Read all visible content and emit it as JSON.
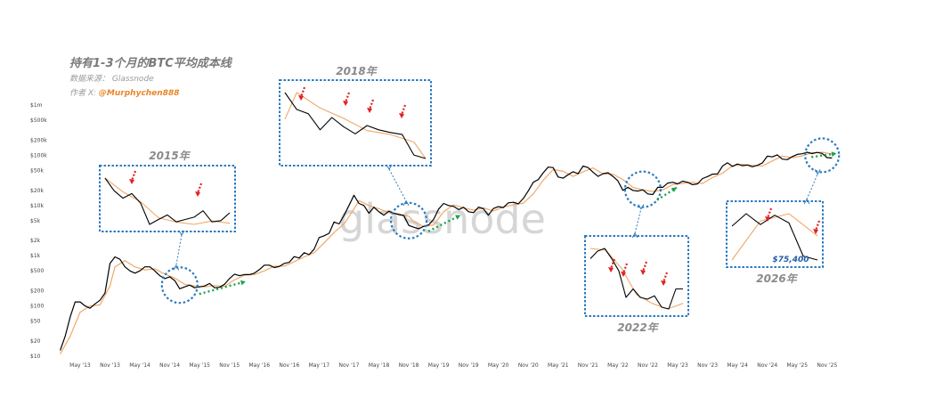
{
  "header": {
    "title": "持有1-3个月的BTC平均成本线",
    "source": "数据来源： Glassnode",
    "author_prefix": "作者 X: ",
    "author_handle": "@Murphychen888"
  },
  "watermark": "glassnode",
  "colors": {
    "price": "#000000",
    "cost_line": "#f0a868",
    "box_border": "#2a7abf",
    "down_arrow": "#e02020",
    "up_arrow": "#1aa34a"
  },
  "chart_data": {
    "type": "line",
    "y_scale": "log",
    "ylim": [
      10,
      1000000
    ],
    "y_ticks": [
      {
        "value": 1000000,
        "label": "$1m"
      },
      {
        "value": 500000,
        "label": "$500k"
      },
      {
        "value": 200000,
        "label": "$200k"
      },
      {
        "value": 100000,
        "label": "$100k"
      },
      {
        "value": 50000,
        "label": "$50k"
      },
      {
        "value": 20000,
        "label": "$20k"
      },
      {
        "value": 10000,
        "label": "$10k"
      },
      {
        "value": 5000,
        "label": "$5k"
      },
      {
        "value": 2000,
        "label": "$2k"
      },
      {
        "value": 1000,
        "label": "$1k"
      },
      {
        "value": 500,
        "label": "$500"
      },
      {
        "value": 200,
        "label": "$200"
      },
      {
        "value": 100,
        "label": "$100"
      },
      {
        "value": 50,
        "label": "$50"
      },
      {
        "value": 20,
        "label": "$20"
      },
      {
        "value": 10,
        "label": "$10"
      }
    ],
    "x_ticks": [
      "May '13",
      "Nov '13",
      "May '14",
      "Nov '14",
      "May '15",
      "Nov '15",
      "May '16",
      "Nov '16",
      "May '17",
      "Nov '17",
      "May '18",
      "Nov '18",
      "May '19",
      "Nov '19",
      "May '20",
      "Nov '20",
      "May '21",
      "Nov '21",
      "May '22",
      "Nov '22",
      "May '23",
      "Nov '23",
      "May '24",
      "Nov '24",
      "May '25",
      "Nov '25"
    ],
    "x_range": [
      "2012-12",
      "2026-01"
    ],
    "series": [
      {
        "key": "price",
        "points": [
          [
            "2013-01",
            13
          ],
          [
            "2013-02",
            25
          ],
          [
            "2013-03",
            60
          ],
          [
            "2013-04",
            120
          ],
          [
            "2013-05",
            120
          ],
          [
            "2013-06",
            100
          ],
          [
            "2013-07",
            90
          ],
          [
            "2013-08",
            110
          ],
          [
            "2013-09",
            130
          ],
          [
            "2013-10",
            180
          ],
          [
            "2013-11",
            700
          ],
          [
            "2013-12",
            950
          ],
          [
            "2014-01",
            850
          ],
          [
            "2014-02",
            600
          ],
          [
            "2014-03",
            500
          ],
          [
            "2014-04",
            450
          ],
          [
            "2014-05",
            500
          ],
          [
            "2014-06",
            600
          ],
          [
            "2014-07",
            600
          ],
          [
            "2014-08",
            500
          ],
          [
            "2014-09",
            400
          ],
          [
            "2014-10",
            350
          ],
          [
            "2014-11",
            380
          ],
          [
            "2014-12",
            320
          ],
          [
            "2015-01",
            220
          ],
          [
            "2015-02",
            240
          ],
          [
            "2015-03",
            260
          ],
          [
            "2015-04",
            230
          ],
          [
            "2015-05",
            240
          ],
          [
            "2015-06",
            250
          ],
          [
            "2015-07",
            280
          ],
          [
            "2015-08",
            230
          ],
          [
            "2015-09",
            235
          ],
          [
            "2015-10",
            270
          ],
          [
            "2015-11",
            350
          ],
          [
            "2015-12",
            430
          ],
          [
            "2016-01",
            400
          ],
          [
            "2016-02",
            420
          ],
          [
            "2016-03",
            420
          ],
          [
            "2016-04",
            450
          ],
          [
            "2016-05",
            530
          ],
          [
            "2016-06",
            650
          ],
          [
            "2016-07",
            650
          ],
          [
            "2016-08",
            580
          ],
          [
            "2016-09",
            610
          ],
          [
            "2016-10",
            700
          ],
          [
            "2016-11",
            740
          ],
          [
            "2016-12",
            960
          ],
          [
            "2017-01",
            900
          ],
          [
            "2017-02",
            1150
          ],
          [
            "2017-03",
            1050
          ],
          [
            "2017-04",
            1350
          ],
          [
            "2017-05",
            2300
          ],
          [
            "2017-06",
            2500
          ],
          [
            "2017-07",
            2800
          ],
          [
            "2017-08",
            4700
          ],
          [
            "2017-09",
            4300
          ],
          [
            "2017-10",
            6400
          ],
          [
            "2017-11",
            10000
          ],
          [
            "2017-12",
            16000
          ],
          [
            "2018-01",
            11000
          ],
          [
            "2018-02",
            10000
          ],
          [
            "2018-03",
            7000
          ],
          [
            "2018-04",
            9200
          ],
          [
            "2018-05",
            7500
          ],
          [
            "2018-06",
            6400
          ],
          [
            "2018-07",
            7700
          ],
          [
            "2018-08",
            7000
          ],
          [
            "2018-09",
            6600
          ],
          [
            "2018-10",
            6300
          ],
          [
            "2018-11",
            4000
          ],
          [
            "2018-12",
            3700
          ],
          [
            "2019-01",
            3450
          ],
          [
            "2019-02",
            3850
          ],
          [
            "2019-03",
            4100
          ],
          [
            "2019-04",
            5300
          ],
          [
            "2019-05",
            8500
          ],
          [
            "2019-06",
            11000
          ],
          [
            "2019-07",
            10000
          ],
          [
            "2019-08",
            9600
          ],
          [
            "2019-09",
            8300
          ],
          [
            "2019-10",
            9200
          ],
          [
            "2019-11",
            7500
          ],
          [
            "2019-12",
            7200
          ],
          [
            "2020-01",
            9300
          ],
          [
            "2020-02",
            8600
          ],
          [
            "2020-03",
            6400
          ],
          [
            "2020-04",
            8700
          ],
          [
            "2020-05",
            9500
          ],
          [
            "2020-06",
            9100
          ],
          [
            "2020-07",
            11300
          ],
          [
            "2020-08",
            11600
          ],
          [
            "2020-09",
            10800
          ],
          [
            "2020-10",
            13800
          ],
          [
            "2020-11",
            19600
          ],
          [
            "2020-12",
            29000
          ],
          [
            "2021-01",
            33000
          ],
          [
            "2021-02",
            45000
          ],
          [
            "2021-03",
            58000
          ],
          [
            "2021-04",
            57000
          ],
          [
            "2021-05",
            37000
          ],
          [
            "2021-06",
            35000
          ],
          [
            "2021-07",
            41000
          ],
          [
            "2021-08",
            47000
          ],
          [
            "2021-09",
            43000
          ],
          [
            "2021-10",
            61000
          ],
          [
            "2021-11",
            57000
          ],
          [
            "2021-12",
            46000
          ],
          [
            "2022-01",
            38000
          ],
          [
            "2022-02",
            43000
          ],
          [
            "2022-03",
            45000
          ],
          [
            "2022-04",
            38000
          ],
          [
            "2022-05",
            31000
          ],
          [
            "2022-06",
            20000
          ],
          [
            "2022-07",
            23000
          ],
          [
            "2022-08",
            20000
          ],
          [
            "2022-09",
            19400
          ],
          [
            "2022-10",
            20500
          ],
          [
            "2022-11",
            17000
          ],
          [
            "2022-12",
            16500
          ],
          [
            "2023-01",
            23000
          ],
          [
            "2023-02",
            23000
          ],
          [
            "2023-03",
            28000
          ],
          [
            "2023-04",
            29000
          ],
          [
            "2023-05",
            27000
          ],
          [
            "2023-06",
            30500
          ],
          [
            "2023-07",
            29000
          ],
          [
            "2023-08",
            26000
          ],
          [
            "2023-09",
            27000
          ],
          [
            "2023-10",
            34500
          ],
          [
            "2023-11",
            37700
          ],
          [
            "2023-12",
            42000
          ],
          [
            "2024-01",
            42500
          ],
          [
            "2024-02",
            61000
          ],
          [
            "2024-03",
            71000
          ],
          [
            "2024-04",
            60000
          ],
          [
            "2024-05",
            67000
          ],
          [
            "2024-06",
            62000
          ],
          [
            "2024-07",
            64000
          ],
          [
            "2024-08",
            59000
          ],
          [
            "2024-09",
            63000
          ],
          [
            "2024-10",
            70000
          ],
          [
            "2024-11",
            96000
          ],
          [
            "2024-12",
            93000
          ],
          [
            "2025-01",
            102000
          ],
          [
            "2025-02",
            84000
          ],
          [
            "2025-03",
            82000
          ],
          [
            "2025-04",
            94000
          ],
          [
            "2025-05",
            104000
          ],
          [
            "2025-06",
            107000
          ],
          [
            "2025-07",
            115000
          ],
          [
            "2025-08",
            108000
          ],
          [
            "2025-09",
            114000
          ],
          [
            "2025-10",
            109000
          ],
          [
            "2025-11",
            90000
          ],
          [
            "2025-12",
            88000
          ]
        ]
      },
      {
        "key": "cost_line",
        "points": [
          [
            "2013-01",
            11
          ],
          [
            "2013-03",
            25
          ],
          [
            "2013-05",
            75
          ],
          [
            "2013-07",
            100
          ],
          [
            "2013-09",
            105
          ],
          [
            "2013-11",
            250
          ],
          [
            "2013-12",
            600
          ],
          [
            "2014-02",
            800
          ],
          [
            "2014-04",
            600
          ],
          [
            "2014-06",
            520
          ],
          [
            "2014-08",
            550
          ],
          [
            "2014-10",
            430
          ],
          [
            "2014-12",
            360
          ],
          [
            "2015-02",
            270
          ],
          [
            "2015-04",
            250
          ],
          [
            "2015-06",
            240
          ],
          [
            "2015-08",
            255
          ],
          [
            "2015-10",
            245
          ],
          [
            "2015-12",
            330
          ],
          [
            "2016-02",
            410
          ],
          [
            "2016-04",
            420
          ],
          [
            "2016-06",
            500
          ],
          [
            "2016-08",
            620
          ],
          [
            "2016-10",
            620
          ],
          [
            "2016-12",
            760
          ],
          [
            "2017-02",
            950
          ],
          [
            "2017-04",
            1150
          ],
          [
            "2017-06",
            1800
          ],
          [
            "2017-08",
            2900
          ],
          [
            "2017-10",
            4300
          ],
          [
            "2017-12",
            8500
          ],
          [
            "2018-01",
            12500
          ],
          [
            "2018-03",
            10000
          ],
          [
            "2018-05",
            8600
          ],
          [
            "2018-07",
            7200
          ],
          [
            "2018-09",
            6800
          ],
          [
            "2018-11",
            6100
          ],
          [
            "2018-12",
            4800
          ],
          [
            "2019-02",
            3800
          ],
          [
            "2019-04",
            4100
          ],
          [
            "2019-06",
            7500
          ],
          [
            "2019-08",
            10300
          ],
          [
            "2019-10",
            9000
          ],
          [
            "2019-12",
            8100
          ],
          [
            "2020-02",
            9000
          ],
          [
            "2020-04",
            7800
          ],
          [
            "2020-06",
            9300
          ],
          [
            "2020-08",
            10300
          ],
          [
            "2020-10",
            11100
          ],
          [
            "2020-12",
            17000
          ],
          [
            "2021-02",
            32000
          ],
          [
            "2021-04",
            52000
          ],
          [
            "2021-06",
            48000
          ],
          [
            "2021-08",
            38000
          ],
          [
            "2021-10",
            47000
          ],
          [
            "2021-12",
            56000
          ],
          [
            "2022-02",
            43000
          ],
          [
            "2022-04",
            42000
          ],
          [
            "2022-06",
            33000
          ],
          [
            "2022-08",
            23000
          ],
          [
            "2022-10",
            20500
          ],
          [
            "2022-12",
            19000
          ],
          [
            "2023-02",
            20500
          ],
          [
            "2023-04",
            26000
          ],
          [
            "2023-06",
            27500
          ],
          [
            "2023-08",
            29000
          ],
          [
            "2023-10",
            27500
          ],
          [
            "2023-12",
            36000
          ],
          [
            "2024-02",
            44000
          ],
          [
            "2024-04",
            62000
          ],
          [
            "2024-06",
            66000
          ],
          [
            "2024-08",
            63000
          ],
          [
            "2024-10",
            61000
          ],
          [
            "2024-12",
            77000
          ],
          [
            "2025-02",
            96000
          ],
          [
            "2025-04",
            90000
          ],
          [
            "2025-06",
            97000
          ],
          [
            "2025-08",
            112000
          ],
          [
            "2025-10",
            115000
          ],
          [
            "2025-12",
            106000
          ]
        ]
      }
    ],
    "annotations": {
      "insets": [
        {
          "key": "2015",
          "label": "2015年"
        },
        {
          "key": "2018",
          "label": "2018年"
        },
        {
          "key": "2022",
          "label": "2022年"
        },
        {
          "key": "2026",
          "label": "2026年",
          "price_label": "$75,400"
        }
      ]
    }
  }
}
